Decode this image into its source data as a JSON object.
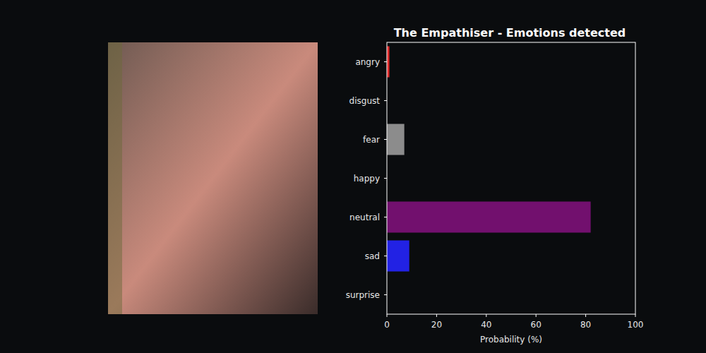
{
  "chart_data": {
    "type": "bar",
    "orientation": "horizontal",
    "title": "The Empathiser - Emotions detected",
    "x_label": "Probability (%)",
    "categories": [
      "angry",
      "disgust",
      "fear",
      "happy",
      "neutral",
      "sad",
      "surprise"
    ],
    "values": [
      1,
      0,
      7,
      0,
      82,
      9,
      0
    ],
    "colors": [
      "#e02a2a",
      "#2a9d3a",
      "#8c8c8c",
      "#e0c020",
      "#72106e",
      "#2222e4",
      "#e08020"
    ],
    "xlim": [
      0,
      100
    ],
    "xticks": [
      0,
      20,
      40,
      60,
      80,
      100
    ],
    "grid": false
  }
}
